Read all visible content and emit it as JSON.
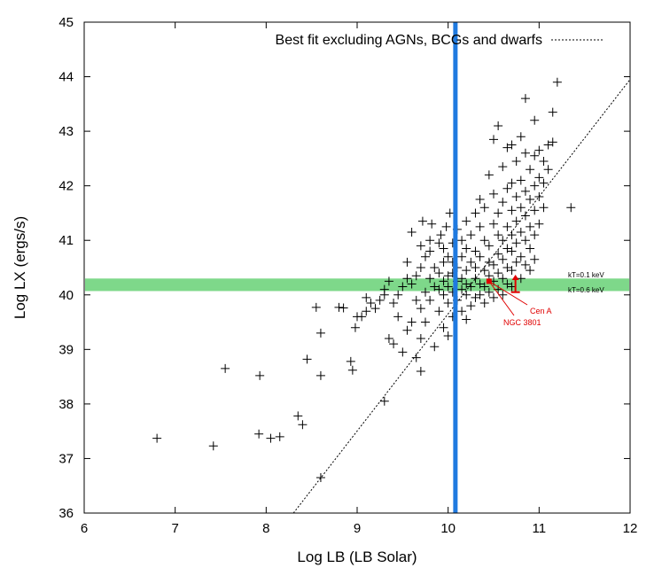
{
  "chart_data": {
    "type": "scatter",
    "title": "",
    "xlabel": "Log LB (LB Solar)",
    "ylabel": "Log LX (ergs/s)",
    "xlim": [
      6,
      12
    ],
    "ylim": [
      36,
      45
    ],
    "x_ticks": [
      "6",
      "7",
      "8",
      "9",
      "10",
      "11",
      "12"
    ],
    "y_ticks": [
      "36",
      "37",
      "38",
      "39",
      "40",
      "41",
      "42",
      "43",
      "44",
      "45"
    ],
    "grid": false,
    "legend": {
      "placement": "top-right",
      "entries": [
        "Best fit excluding AGNs, BCGs and dwarfs"
      ]
    },
    "fit_line": {
      "name": "Best fit excluding AGNs, BCGs and dwarfs",
      "x": [
        8.3,
        12.0
      ],
      "y": [
        36.0,
        43.95
      ],
      "color": "#000000"
    },
    "vertical_line": {
      "x": 10.08,
      "color": "#1f7ae0"
    },
    "horizontal_band": {
      "y": [
        40.07,
        40.3
      ],
      "color": "#7ed88a"
    },
    "band_labels": [
      "kT=0.1 keV",
      "kT=0.6 keV"
    ],
    "annotations": [
      {
        "text": "Cen A",
        "x": 10.45,
        "y": 40.25,
        "color": "#e00000"
      },
      {
        "text": "NGC 3801",
        "x": 10.45,
        "y": 40.25,
        "color": "#e00000"
      }
    ],
    "error_bar": {
      "x": 10.74,
      "y_low": 40.05,
      "y_high": 40.37,
      "color": "#e00000"
    },
    "series": [
      {
        "marker": "plus",
        "points": [
          [
            6.8,
            37.37
          ],
          [
            7.42,
            37.23
          ],
          [
            7.55,
            38.65
          ],
          [
            7.93,
            38.52
          ],
          [
            7.92,
            37.45
          ],
          [
            8.05,
            37.37
          ],
          [
            8.15,
            37.4
          ],
          [
            8.35,
            37.78
          ],
          [
            8.4,
            37.62
          ],
          [
            8.45,
            38.82
          ],
          [
            8.6,
            38.52
          ],
          [
            8.6,
            39.3
          ],
          [
            8.6,
            36.65
          ],
          [
            8.55,
            39.77
          ],
          [
            8.8,
            39.77
          ],
          [
            8.85,
            39.76
          ],
          [
            8.93,
            38.78
          ],
          [
            8.95,
            38.62
          ],
          [
            8.98,
            39.4
          ],
          [
            9.0,
            39.6
          ],
          [
            9.05,
            39.6
          ],
          [
            9.1,
            39.7
          ],
          [
            9.1,
            39.95
          ],
          [
            9.15,
            39.85
          ],
          [
            9.2,
            39.75
          ],
          [
            9.25,
            39.9
          ],
          [
            9.3,
            38.05
          ],
          [
            9.3,
            40.0
          ],
          [
            9.3,
            40.1
          ],
          [
            9.35,
            39.2
          ],
          [
            9.35,
            40.25
          ],
          [
            9.4,
            39.1
          ],
          [
            9.4,
            39.85
          ],
          [
            9.45,
            39.6
          ],
          [
            9.45,
            40.0
          ],
          [
            9.5,
            40.15
          ],
          [
            9.5,
            38.95
          ],
          [
            9.55,
            39.35
          ],
          [
            9.55,
            40.3
          ],
          [
            9.55,
            40.6
          ],
          [
            9.6,
            39.5
          ],
          [
            9.6,
            40.2
          ],
          [
            9.6,
            41.15
          ],
          [
            9.65,
            38.85
          ],
          [
            9.65,
            39.9
          ],
          [
            9.65,
            40.35
          ],
          [
            9.7,
            38.6
          ],
          [
            9.7,
            39.2
          ],
          [
            9.7,
            39.75
          ],
          [
            9.7,
            40.5
          ],
          [
            9.7,
            40.9
          ],
          [
            9.72,
            41.35
          ],
          [
            9.75,
            39.5
          ],
          [
            9.75,
            40.05
          ],
          [
            9.75,
            40.7
          ],
          [
            9.8,
            39.9
          ],
          [
            9.8,
            40.3
          ],
          [
            9.8,
            40.8
          ],
          [
            9.8,
            41.0
          ],
          [
            9.82,
            41.3
          ],
          [
            9.85,
            39.05
          ],
          [
            9.85,
            40.15
          ],
          [
            9.85,
            40.5
          ],
          [
            9.9,
            39.7
          ],
          [
            9.9,
            40.1
          ],
          [
            9.9,
            40.4
          ],
          [
            9.9,
            40.95
          ],
          [
            9.92,
            41.1
          ],
          [
            9.95,
            39.4
          ],
          [
            9.95,
            40.0
          ],
          [
            9.95,
            40.25
          ],
          [
            9.95,
            40.6
          ],
          [
            9.95,
            40.85
          ],
          [
            9.98,
            41.25
          ],
          [
            10.0,
            39.25
          ],
          [
            10.0,
            39.85
          ],
          [
            10.0,
            40.15
          ],
          [
            10.0,
            40.35
          ],
          [
            10.0,
            40.7
          ],
          [
            10.02,
            41.5
          ],
          [
            10.05,
            39.6
          ],
          [
            10.05,
            40.05
          ],
          [
            10.05,
            40.4
          ],
          [
            10.05,
            40.6
          ],
          [
            10.05,
            40.95
          ],
          [
            10.1,
            39.9
          ],
          [
            10.1,
            40.25
          ],
          [
            10.1,
            40.5
          ],
          [
            10.1,
            41.2
          ],
          [
            10.15,
            39.7
          ],
          [
            10.15,
            40.1
          ],
          [
            10.15,
            40.3
          ],
          [
            10.15,
            40.7
          ],
          [
            10.15,
            41.0
          ],
          [
            10.2,
            39.55
          ],
          [
            10.2,
            40.0
          ],
          [
            10.2,
            40.2
          ],
          [
            10.2,
            40.45
          ],
          [
            10.2,
            40.85
          ],
          [
            10.2,
            41.35
          ],
          [
            10.25,
            39.8
          ],
          [
            10.25,
            40.15
          ],
          [
            10.25,
            40.6
          ],
          [
            10.25,
            41.1
          ],
          [
            10.3,
            39.95
          ],
          [
            10.3,
            40.3
          ],
          [
            10.3,
            40.5
          ],
          [
            10.3,
            40.8
          ],
          [
            10.3,
            41.5
          ],
          [
            10.35,
            40.0
          ],
          [
            10.35,
            40.2
          ],
          [
            10.35,
            40.7
          ],
          [
            10.35,
            41.25
          ],
          [
            10.35,
            41.75
          ],
          [
            10.4,
            39.85
          ],
          [
            10.4,
            40.15
          ],
          [
            10.4,
            40.45
          ],
          [
            10.4,
            41.0
          ],
          [
            10.4,
            41.6
          ],
          [
            10.45,
            40.05
          ],
          [
            10.45,
            40.35
          ],
          [
            10.45,
            40.6
          ],
          [
            10.45,
            40.9
          ],
          [
            10.45,
            42.2
          ],
          [
            10.5,
            39.95
          ],
          [
            10.5,
            40.25
          ],
          [
            10.5,
            40.55
          ],
          [
            10.5,
            41.3
          ],
          [
            10.5,
            41.85
          ],
          [
            10.5,
            42.85
          ],
          [
            10.55,
            40.1
          ],
          [
            10.55,
            40.4
          ],
          [
            10.55,
            40.75
          ],
          [
            10.55,
            41.1
          ],
          [
            10.55,
            41.5
          ],
          [
            10.55,
            43.1
          ],
          [
            10.6,
            40.0
          ],
          [
            10.6,
            40.3
          ],
          [
            10.6,
            40.65
          ],
          [
            10.6,
            41.0
          ],
          [
            10.6,
            41.7
          ],
          [
            10.6,
            42.35
          ],
          [
            10.65,
            40.2
          ],
          [
            10.65,
            40.5
          ],
          [
            10.65,
            40.85
          ],
          [
            10.65,
            41.25
          ],
          [
            10.65,
            41.95
          ],
          [
            10.65,
            42.7
          ],
          [
            10.7,
            40.15
          ],
          [
            10.7,
            40.45
          ],
          [
            10.7,
            40.8
          ],
          [
            10.7,
            41.1
          ],
          [
            10.7,
            41.55
          ],
          [
            10.7,
            42.05
          ],
          [
            10.7,
            42.75
          ],
          [
            10.75,
            40.6
          ],
          [
            10.75,
            40.95
          ],
          [
            10.75,
            41.35
          ],
          [
            10.75,
            41.8
          ],
          [
            10.75,
            42.45
          ],
          [
            10.8,
            40.3
          ],
          [
            10.8,
            40.7
          ],
          [
            10.8,
            41.15
          ],
          [
            10.8,
            41.6
          ],
          [
            10.8,
            42.1
          ],
          [
            10.8,
            42.9
          ],
          [
            10.85,
            40.55
          ],
          [
            10.85,
            41.0
          ],
          [
            10.85,
            41.45
          ],
          [
            10.85,
            41.9
          ],
          [
            10.85,
            42.6
          ],
          [
            10.85,
            43.6
          ],
          [
            10.9,
            40.45
          ],
          [
            10.9,
            40.85
          ],
          [
            10.9,
            41.25
          ],
          [
            10.9,
            41.75
          ],
          [
            10.9,
            42.3
          ],
          [
            10.95,
            40.65
          ],
          [
            10.95,
            41.1
          ],
          [
            10.95,
            41.55
          ],
          [
            10.95,
            42.0
          ],
          [
            10.95,
            42.55
          ],
          [
            10.95,
            43.2
          ],
          [
            11.0,
            41.3
          ],
          [
            11.0,
            41.8
          ],
          [
            11.0,
            42.15
          ],
          [
            11.0,
            42.65
          ],
          [
            11.05,
            41.6
          ],
          [
            11.05,
            42.05
          ],
          [
            11.05,
            42.45
          ],
          [
            11.1,
            42.3
          ],
          [
            11.1,
            42.75
          ],
          [
            11.15,
            42.8
          ],
          [
            11.15,
            43.35
          ],
          [
            11.2,
            43.9
          ],
          [
            11.35,
            41.6
          ]
        ]
      }
    ]
  }
}
